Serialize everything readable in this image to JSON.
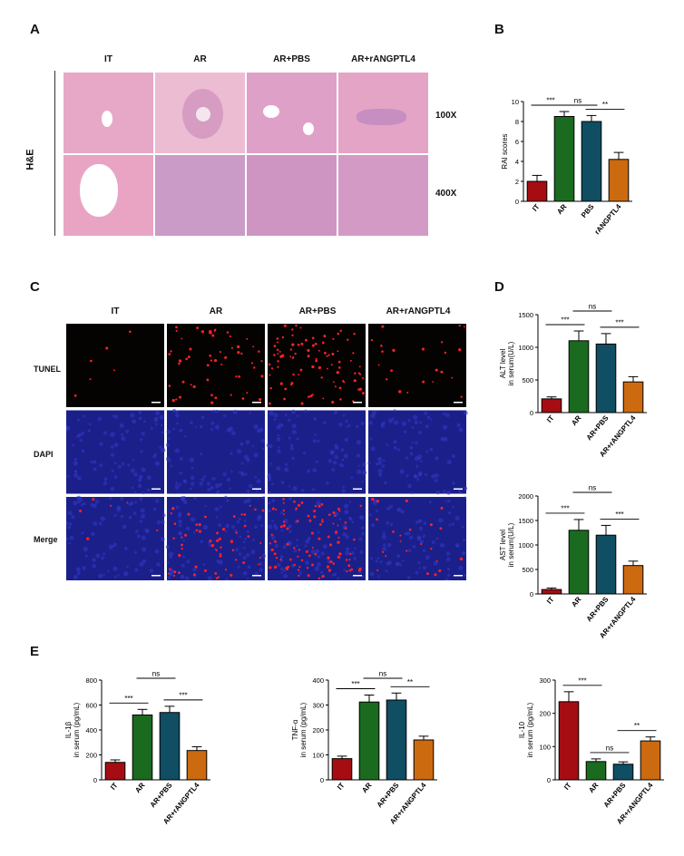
{
  "panels": {
    "A": "A",
    "B": "B",
    "C": "C",
    "D": "D",
    "E": "E"
  },
  "he": {
    "groups": [
      "IT",
      "AR",
      "AR+PBS",
      "AR+rANGPTL4"
    ],
    "stain_label": "H&E",
    "magnifications": [
      "100X",
      "400X"
    ]
  },
  "tunel": {
    "groups": [
      "IT",
      "AR",
      "AR+PBS",
      "AR+rANGPTL4"
    ],
    "rows": [
      "TUNEL",
      "DAPI",
      "Merge"
    ]
  },
  "colors": {
    "IT": "#a50d12",
    "AR": "#1a6b1f",
    "AR+PBS": "#0f4e63",
    "rANGPTL4": "#cc6a10",
    "he_bg": "#e8a9c8",
    "he_stroma": "#c98bbd",
    "dapi": "#1b1f8a",
    "tunel_bg": "#050202"
  },
  "chart_data": [
    {
      "id": "B",
      "type": "bar",
      "categories": [
        "IT",
        "AR",
        "PBS",
        "rANGPTL4"
      ],
      "values": [
        2.0,
        8.5,
        8.0,
        4.2
      ],
      "errors": [
        0.6,
        0.5,
        0.6,
        0.7
      ],
      "ylabel": "RAI scores",
      "ylim": [
        0,
        10
      ],
      "yticks": [
        0,
        2,
        4,
        6,
        8,
        10
      ],
      "sig": [
        {
          "a": 0,
          "b": 1,
          "label": "***"
        },
        {
          "a": 1,
          "b": 2,
          "label": "ns"
        },
        {
          "a": 2,
          "b": 3,
          "label": "**"
        }
      ]
    },
    {
      "id": "D1",
      "type": "bar",
      "categories": [
        "IT",
        "AR",
        "AR+PBS",
        "AR+rANGPTL4"
      ],
      "values": [
        210,
        1100,
        1050,
        470
      ],
      "errors": [
        30,
        150,
        160,
        80
      ],
      "ylabel": [
        "ALT level",
        "in serum(U/L)"
      ],
      "ylim": [
        0,
        1500
      ],
      "yticks": [
        0,
        500,
        1000,
        1500
      ],
      "sig": [
        {
          "a": 0,
          "b": 1,
          "label": "***"
        },
        {
          "a": 1,
          "b": 2,
          "label": "ns"
        },
        {
          "a": 2,
          "b": 3,
          "label": "***"
        }
      ]
    },
    {
      "id": "D2",
      "type": "bar",
      "categories": [
        "IT",
        "AR",
        "AR+PBS",
        "AR+rANGPTL4"
      ],
      "values": [
        90,
        1300,
        1200,
        580
      ],
      "errors": [
        30,
        220,
        200,
        90
      ],
      "ylabel": [
        "AST level",
        "in serum(U/L)"
      ],
      "ylim": [
        0,
        2000
      ],
      "yticks": [
        0,
        500,
        1000,
        1500,
        2000
      ],
      "sig": [
        {
          "a": 0,
          "b": 1,
          "label": "***"
        },
        {
          "a": 1,
          "b": 2,
          "label": "ns"
        },
        {
          "a": 2,
          "b": 3,
          "label": "***"
        }
      ]
    },
    {
      "id": "E1",
      "type": "bar",
      "categories": [
        "IT",
        "AR",
        "AR+PBS",
        "AR+rANGPTL4"
      ],
      "values": [
        140,
        520,
        540,
        235
      ],
      "errors": [
        20,
        45,
        50,
        30
      ],
      "ylabel": [
        "IL-1β",
        "in serum (pg/mL)"
      ],
      "ylim": [
        0,
        800
      ],
      "yticks": [
        0,
        200,
        400,
        600,
        800
      ],
      "sig": [
        {
          "a": 0,
          "b": 1,
          "label": "***"
        },
        {
          "a": 1,
          "b": 2,
          "label": "ns"
        },
        {
          "a": 2,
          "b": 3,
          "label": "***"
        }
      ]
    },
    {
      "id": "E2",
      "type": "bar",
      "categories": [
        "IT",
        "AR",
        "AR+PBS",
        "AR+rANGPTL4"
      ],
      "values": [
        85,
        312,
        320,
        160
      ],
      "errors": [
        10,
        28,
        28,
        15
      ],
      "ylabel": [
        "TNF-α",
        "in serum (pg/mL)"
      ],
      "ylim": [
        0,
        400
      ],
      "yticks": [
        0,
        100,
        200,
        300,
        400
      ],
      "sig": [
        {
          "a": 0,
          "b": 1,
          "label": "***"
        },
        {
          "a": 1,
          "b": 2,
          "label": "ns"
        },
        {
          "a": 2,
          "b": 3,
          "label": "**"
        }
      ]
    },
    {
      "id": "E3",
      "type": "bar",
      "categories": [
        "IT",
        "AR",
        "AR+PBS",
        "AR+rANGPTL4"
      ],
      "values": [
        235,
        55,
        47,
        117
      ],
      "errors": [
        30,
        8,
        7,
        12
      ],
      "ylabel": [
        "IL-10",
        "in serum (pg/mL)"
      ],
      "ylim": [
        0,
        300
      ],
      "yticks": [
        0,
        100,
        200,
        300
      ],
      "sig": [
        {
          "a": 0,
          "b": 1,
          "label": "***"
        },
        {
          "a": 1,
          "b": 2,
          "label": "ns"
        },
        {
          "a": 2,
          "b": 3,
          "label": "**"
        }
      ]
    }
  ]
}
